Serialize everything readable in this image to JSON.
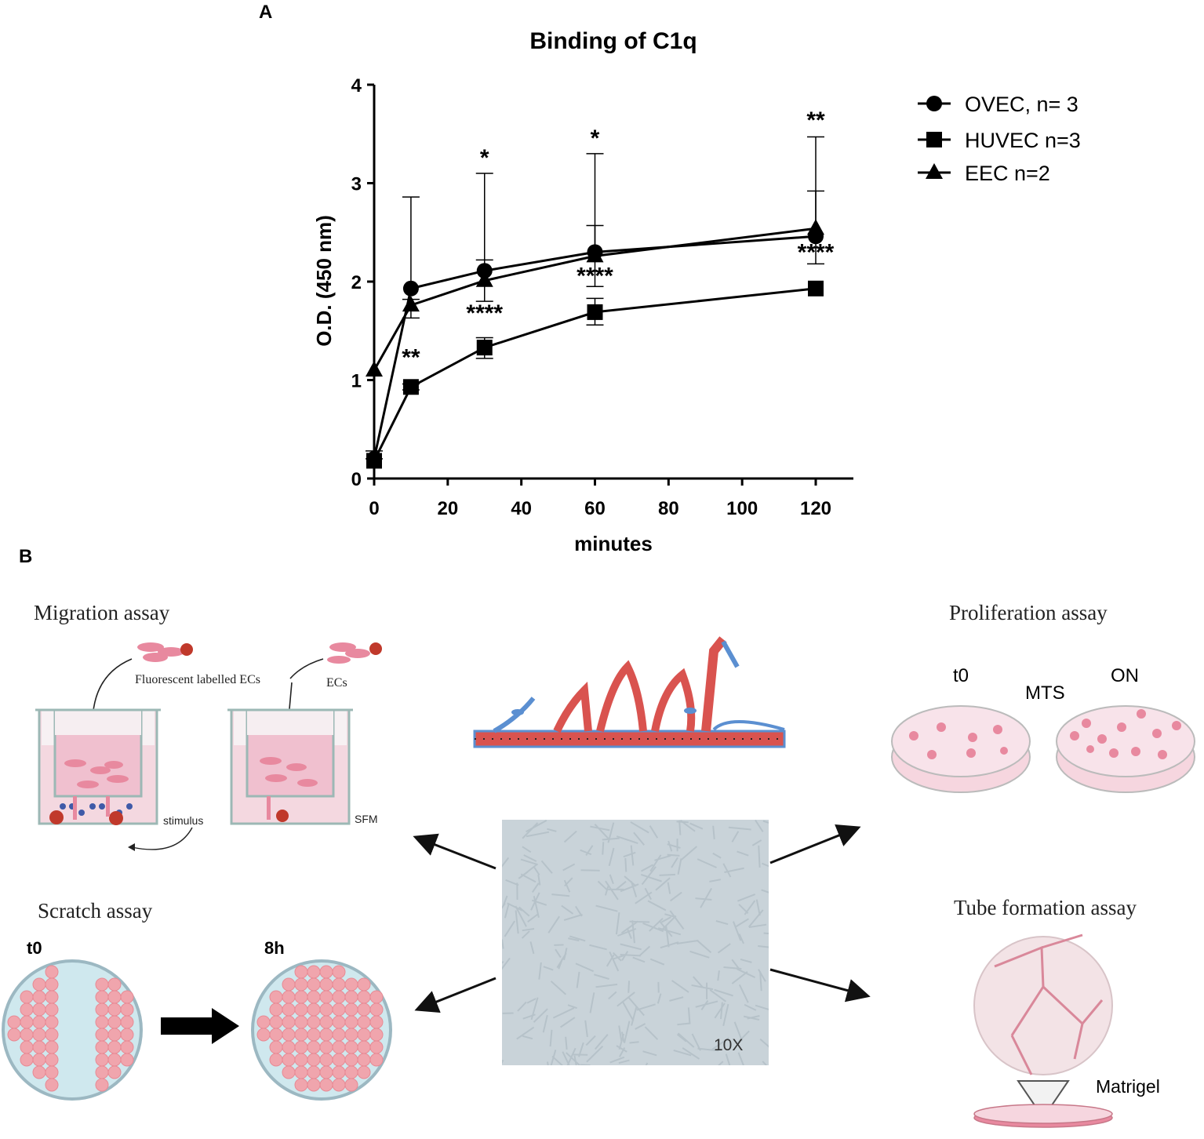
{
  "panel_a": {
    "letter": "A",
    "chart_data": {
      "type": "line",
      "title": "Binding of C1q",
      "xlabel": "minutes",
      "ylabel": "O.D. (450 nm)",
      "xlim": [
        0,
        130
      ],
      "ylim": [
        0,
        4
      ],
      "xticks": [
        0,
        20,
        40,
        60,
        80,
        100,
        120
      ],
      "yticks": [
        0,
        1,
        2,
        3,
        4
      ],
      "grid": false,
      "legend_position": "top-right",
      "series": [
        {
          "name": "OVEC, n= 3",
          "marker": "circle",
          "x": [
            0,
            10,
            30,
            60,
            120
          ],
          "y": [
            0.2,
            1.93,
            2.11,
            2.3,
            2.46
          ],
          "err_upper": [
            0.28,
            2.86,
            3.1,
            3.3,
            3.47
          ]
        },
        {
          "name": "HUVEC n=3",
          "marker": "square",
          "x": [
            0,
            10,
            30,
            60,
            120
          ],
          "y": [
            0.18,
            0.93,
            1.33,
            1.69,
            1.93
          ],
          "err_upper": [
            0.2,
            0.96,
            1.43,
            1.83,
            1.95
          ],
          "err_lower": [
            0.16,
            0.9,
            1.22,
            1.56,
            1.91
          ]
        },
        {
          "name": "EEC n=2",
          "marker": "triangle",
          "x": [
            0,
            10,
            30,
            60,
            120
          ],
          "y": [
            1.1,
            1.76,
            2.01,
            2.26,
            2.54
          ],
          "err_upper": [
            1.1,
            1.82,
            2.22,
            2.57,
            2.92
          ],
          "err_lower": [
            1.1,
            1.63,
            1.8,
            1.95,
            2.18
          ]
        }
      ],
      "annotations": [
        {
          "text": "**",
          "x": 10,
          "y": 1.15
        },
        {
          "text": "*",
          "x": 30,
          "y": 3.18
        },
        {
          "text": "****",
          "x": 30,
          "y": 1.6
        },
        {
          "text": "*",
          "x": 60,
          "y": 3.38
        },
        {
          "text": "****",
          "x": 60,
          "y": 1.98
        },
        {
          "text": "**",
          "x": 120,
          "y": 3.56
        },
        {
          "text": "****",
          "x": 120,
          "y": 2.22
        }
      ]
    }
  },
  "panel_b": {
    "letter": "B",
    "migration": {
      "title": "Migration assay",
      "fluorescent_label": "Fluorescent labelled ECs",
      "ecs_label": "ECs",
      "stimulus_label": "stimulus",
      "sfm_label": "SFM"
    },
    "proliferation": {
      "title": "Proliferation assay",
      "t0": "t0",
      "mts": "MTS",
      "on": "ON"
    },
    "scratch": {
      "title": "Scratch assay",
      "t0": "t0",
      "t8h": "8h"
    },
    "tube": {
      "title": "Tube formation assay",
      "matrigel": "Matrigel"
    },
    "micrograph": {
      "magnification": "10X"
    },
    "colors": {
      "pink_cell": "#e8899f",
      "medium_pink": "#f6d6df",
      "red_layer": "#d9534f",
      "blue_layer": "#5b8fd1",
      "micrograph_gray": "#c9d3d9",
      "dish_blue": "#cfe8ee"
    }
  }
}
